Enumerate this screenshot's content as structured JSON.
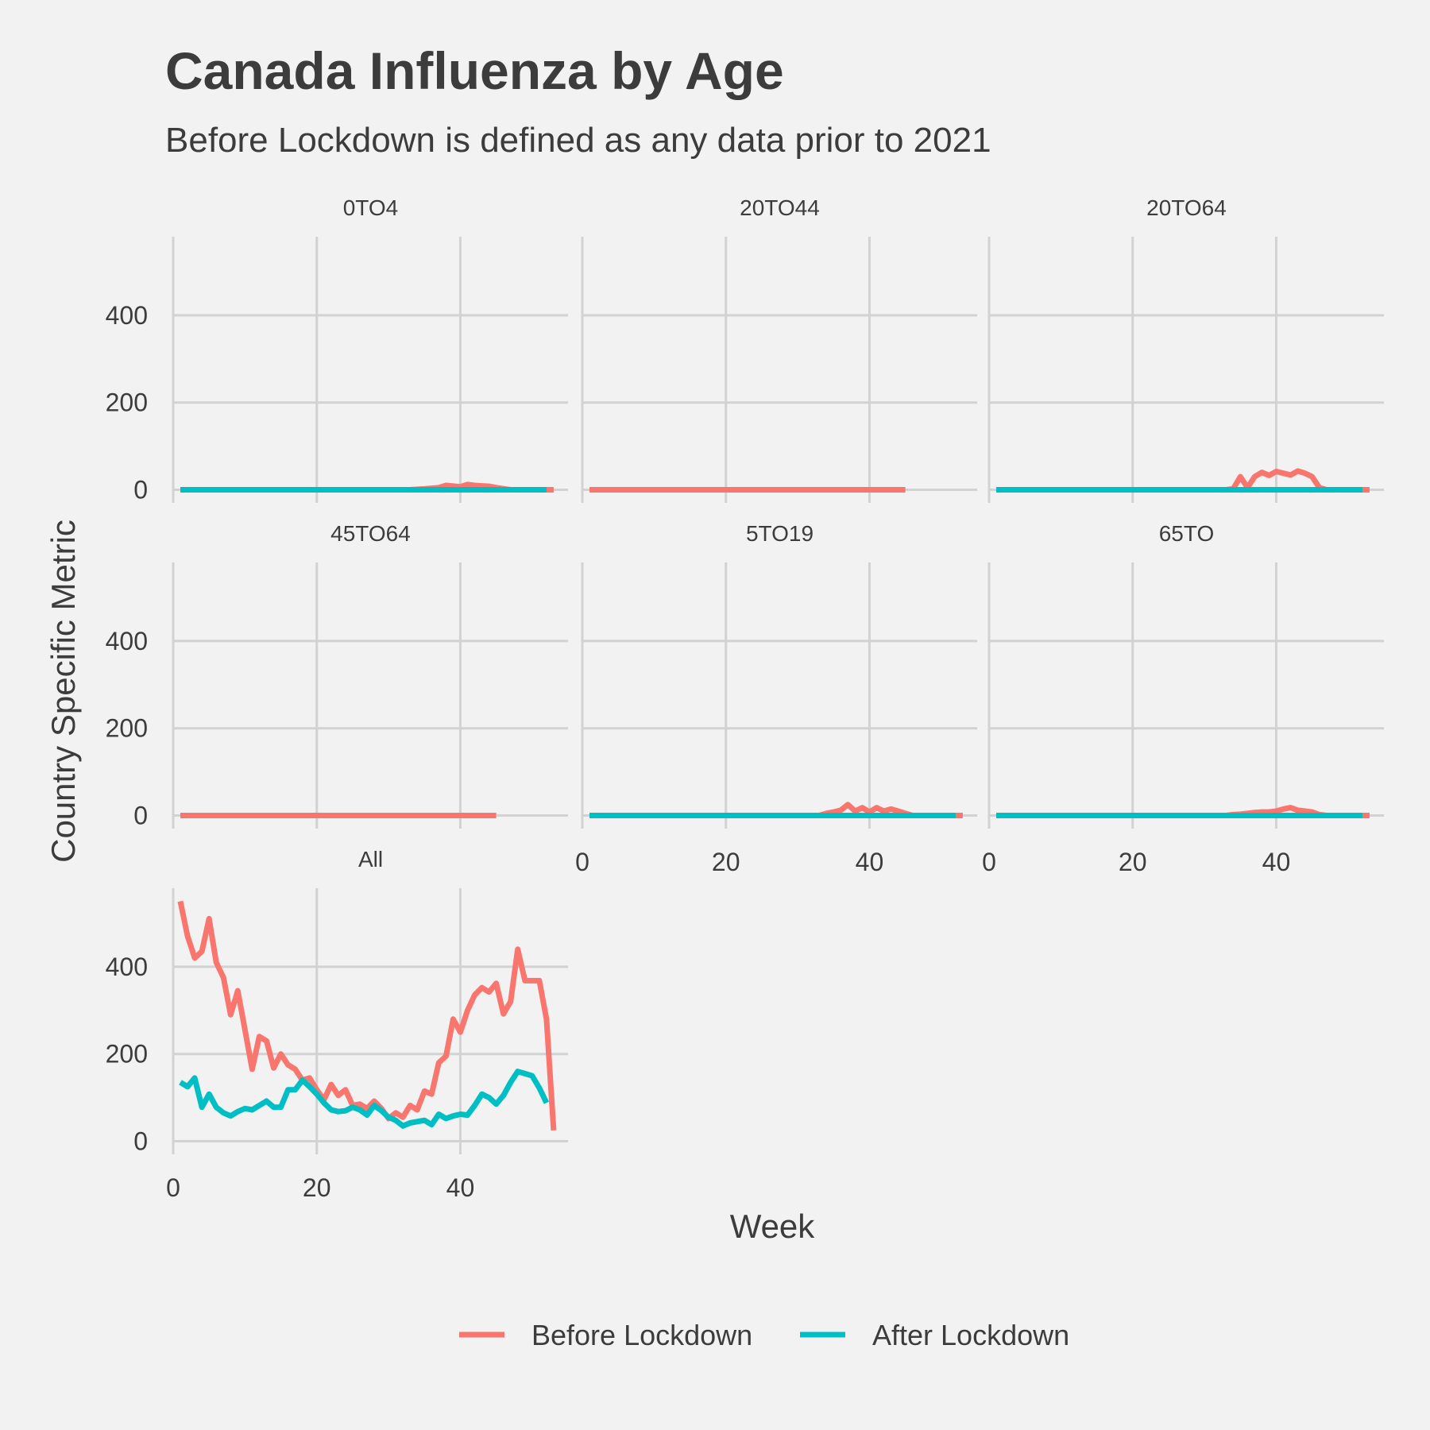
{
  "chart_data": {
    "type": "line",
    "title": "Canada Influenza by Age",
    "subtitle": "Before Lockdown is defined as any data prior to 2021",
    "xlabel": "Week",
    "ylabel": "Country Specific Metric",
    "xlim": [
      0,
      55
    ],
    "ylim": [
      -30,
      580
    ],
    "x_ticks": [
      0,
      20,
      40
    ],
    "y_ticks": [
      0,
      200,
      400
    ],
    "grid": true,
    "legend": {
      "position": "bottom",
      "entries": [
        {
          "label": "Before Lockdown",
          "color": "#F8766D"
        },
        {
          "label": "After Lockdown",
          "color": "#00BFC4"
        }
      ]
    },
    "series_colors": {
      "before": "#F8766D",
      "after": "#00BFC4"
    },
    "panels": [
      {
        "label": "0TO4",
        "before": {
          "x": [
            1,
            5,
            10,
            15,
            20,
            25,
            30,
            33,
            35,
            37,
            38,
            40,
            41,
            42,
            43,
            44,
            45,
            47,
            50,
            53
          ],
          "y": [
            0,
            0,
            0,
            0,
            0,
            0,
            0,
            0,
            2,
            5,
            10,
            7,
            12,
            10,
            9,
            8,
            5,
            0,
            0,
            0
          ]
        },
        "after": {
          "x": [
            1,
            52
          ],
          "y": [
            0,
            0
          ]
        }
      },
      {
        "label": "20TO44",
        "before": {
          "x": [
            1,
            45
          ],
          "y": [
            0,
            0
          ]
        },
        "after": {
          "x": [],
          "y": []
        }
      },
      {
        "label": "20TO64",
        "before": {
          "x": [
            1,
            10,
            20,
            30,
            33,
            34,
            35,
            36,
            37,
            38,
            39,
            40,
            41,
            42,
            43,
            44,
            45,
            46,
            47,
            50,
            53
          ],
          "y": [
            0,
            0,
            0,
            0,
            0,
            2,
            30,
            5,
            30,
            40,
            33,
            42,
            38,
            34,
            43,
            38,
            30,
            5,
            0,
            0,
            0
          ]
        },
        "after": {
          "x": [
            1,
            52
          ],
          "y": [
            0,
            0
          ]
        }
      },
      {
        "label": "45TO64",
        "before": {
          "x": [
            1,
            45
          ],
          "y": [
            0,
            0
          ]
        },
        "after": {
          "x": [],
          "y": []
        }
      },
      {
        "label": "5TO19",
        "before": {
          "x": [
            1,
            10,
            20,
            30,
            33,
            34,
            35,
            36,
            37,
            38,
            39,
            40,
            41,
            42,
            43,
            44,
            45,
            46,
            47,
            50,
            53
          ],
          "y": [
            0,
            0,
            0,
            0,
            0,
            5,
            8,
            12,
            25,
            10,
            18,
            8,
            18,
            10,
            15,
            10,
            5,
            0,
            0,
            0,
            0
          ]
        },
        "after": {
          "x": [
            1,
            52
          ],
          "y": [
            0,
            0
          ]
        }
      },
      {
        "label": "65TO",
        "before": {
          "x": [
            1,
            10,
            20,
            30,
            33,
            34,
            35,
            36,
            37,
            38,
            39,
            40,
            41,
            42,
            43,
            44,
            45,
            46,
            47,
            50,
            53
          ],
          "y": [
            0,
            0,
            0,
            0,
            0,
            2,
            3,
            5,
            7,
            8,
            8,
            10,
            15,
            18,
            12,
            10,
            8,
            2,
            0,
            0,
            0
          ]
        },
        "after": {
          "x": [
            1,
            52
          ],
          "y": [
            0,
            0
          ]
        }
      },
      {
        "label": "All",
        "before": {
          "x": [
            1,
            2,
            3,
            4,
            5,
            6,
            7,
            8,
            9,
            10,
            11,
            12,
            13,
            14,
            15,
            16,
            17,
            18,
            19,
            20,
            21,
            22,
            23,
            24,
            25,
            26,
            27,
            28,
            29,
            30,
            31,
            32,
            33,
            34,
            35,
            36,
            37,
            38,
            39,
            40,
            41,
            42,
            43,
            44,
            45,
            46,
            47,
            48,
            49,
            50,
            51,
            52,
            53
          ],
          "y": [
            550,
            470,
            420,
            435,
            510,
            410,
            375,
            290,
            345,
            255,
            165,
            240,
            230,
            168,
            200,
            175,
            165,
            140,
            145,
            118,
            95,
            130,
            105,
            118,
            82,
            85,
            75,
            92,
            75,
            52,
            65,
            55,
            82,
            72,
            115,
            108,
            180,
            195,
            280,
            250,
            300,
            335,
            352,
            342,
            362,
            292,
            320,
            440,
            368,
            368,
            368,
            280,
            25
          ]
        },
        "after": {
          "x": [
            1,
            2,
            3,
            4,
            5,
            6,
            7,
            8,
            9,
            10,
            11,
            12,
            13,
            14,
            15,
            16,
            17,
            18,
            19,
            20,
            21,
            22,
            23,
            24,
            25,
            26,
            27,
            28,
            29,
            30,
            31,
            32,
            33,
            34,
            35,
            36,
            37,
            38,
            39,
            40,
            41,
            42,
            43,
            44,
            45,
            46,
            47,
            48,
            49,
            50,
            51,
            52
          ],
          "y": [
            135,
            125,
            145,
            78,
            108,
            78,
            65,
            58,
            68,
            75,
            72,
            82,
            92,
            78,
            78,
            118,
            118,
            140,
            125,
            108,
            88,
            72,
            68,
            70,
            78,
            72,
            60,
            82,
            70,
            55,
            48,
            35,
            42,
            45,
            48,
            38,
            62,
            52,
            58,
            62,
            60,
            82,
            108,
            100,
            85,
            105,
            135,
            160,
            155,
            150,
            122,
            88
          ]
        }
      }
    ]
  }
}
